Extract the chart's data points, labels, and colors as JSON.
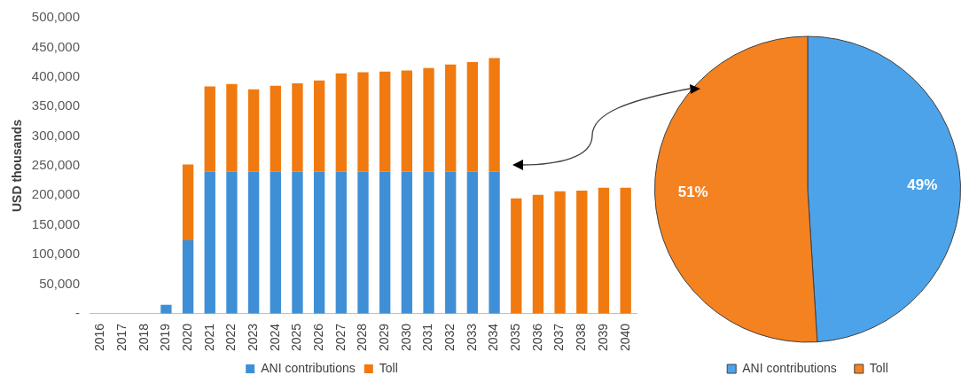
{
  "chart_data": [
    {
      "type": "bar",
      "stacked": true,
      "ylabel": "USD thousands",
      "legend": "bottom",
      "categories": [
        "2016",
        "2017",
        "2018",
        "2019",
        "2020",
        "2021",
        "2022",
        "2023",
        "2024",
        "2025",
        "2026",
        "2027",
        "2028",
        "2029",
        "2030",
        "2031",
        "2032",
        "2033",
        "2034",
        "2035",
        "2036",
        "2037",
        "2038",
        "2039",
        "2040"
      ],
      "series": [
        {
          "name": "ANI contributions",
          "color": "#3f8fd6",
          "values": [
            0,
            0,
            0,
            15000,
            124000,
            240000,
            240000,
            240000,
            240000,
            240000,
            240000,
            240000,
            240000,
            240000,
            240000,
            240000,
            240000,
            240000,
            240000,
            0,
            0,
            0,
            0,
            0,
            0
          ]
        },
        {
          "name": "Toll",
          "color": "#f07a10",
          "values": [
            0,
            0,
            0,
            0,
            128000,
            144000,
            148000,
            139000,
            145000,
            149000,
            154000,
            166000,
            168000,
            169000,
            171000,
            175000,
            181000,
            185000,
            192000,
            195000,
            201000,
            207000,
            208000,
            213000,
            213000
          ]
        }
      ],
      "ylim": [
        0,
        500000
      ],
      "yticks": [
        {
          "value": 0,
          "label": "-"
        },
        {
          "value": 50000,
          "label": "50,000"
        },
        {
          "value": 100000,
          "label": "100,000"
        },
        {
          "value": 150000,
          "label": "150,000"
        },
        {
          "value": 200000,
          "label": "200,000"
        },
        {
          "value": 250000,
          "label": "250,000"
        },
        {
          "value": 300000,
          "label": "300,000"
        },
        {
          "value": 350000,
          "label": "350,000"
        },
        {
          "value": 400000,
          "label": "400,000"
        },
        {
          "value": 450000,
          "label": "450,000"
        },
        {
          "value": 500000,
          "label": "500,000"
        }
      ]
    },
    {
      "type": "pie",
      "legend": "bottom",
      "categories": [
        "ANI contributions",
        "Toll"
      ],
      "values": [
        49,
        51
      ],
      "colors": [
        "#4da3ea",
        "#f58220"
      ],
      "value_labels": [
        "49%",
        "51%"
      ]
    }
  ]
}
